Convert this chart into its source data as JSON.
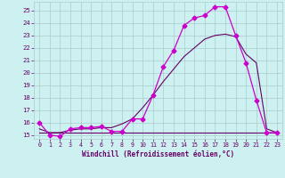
{
  "xlabel": "Windchill (Refroidissement éolien,°C)",
  "background_color": "#cdf0f0",
  "grid_color": "#aacccc",
  "line_color1": "#cc00cc",
  "line_color2": "#660066",
  "xlim": [
    -0.5,
    23.5
  ],
  "ylim": [
    14.7,
    25.7
  ],
  "yticks": [
    15,
    16,
    17,
    18,
    19,
    20,
    21,
    22,
    23,
    24,
    25
  ],
  "xticks": [
    0,
    1,
    2,
    3,
    4,
    5,
    6,
    7,
    8,
    9,
    10,
    11,
    12,
    13,
    14,
    15,
    16,
    17,
    18,
    19,
    20,
    21,
    22,
    23
  ],
  "series1_x": [
    0,
    1,
    2,
    3,
    4,
    5,
    6,
    7,
    8,
    9,
    10,
    11,
    12,
    13,
    14,
    15,
    16,
    17,
    18,
    19,
    20,
    21,
    22,
    23
  ],
  "series1_y": [
    16.0,
    15.0,
    14.9,
    15.5,
    15.6,
    15.6,
    15.7,
    15.3,
    15.3,
    16.3,
    16.3,
    18.2,
    20.5,
    21.8,
    23.8,
    24.4,
    24.6,
    25.3,
    25.3,
    23.0,
    20.8,
    17.8,
    15.2,
    15.2
  ],
  "series2_x": [
    0,
    1,
    2,
    3,
    4,
    5,
    6,
    7,
    8,
    9,
    10,
    11,
    12,
    13,
    14,
    15,
    16,
    17,
    18,
    19,
    20,
    21,
    22,
    23
  ],
  "series2_y": [
    15.2,
    15.2,
    15.2,
    15.2,
    15.2,
    15.2,
    15.2,
    15.2,
    15.2,
    15.2,
    15.2,
    15.2,
    15.2,
    15.2,
    15.2,
    15.2,
    15.2,
    15.2,
    15.2,
    15.2,
    15.2,
    15.2,
    15.2,
    15.2
  ],
  "series3_x": [
    0,
    1,
    2,
    3,
    4,
    5,
    6,
    7,
    8,
    9,
    10,
    11,
    12,
    13,
    14,
    15,
    16,
    17,
    18,
    19,
    20,
    21,
    22,
    23
  ],
  "series3_y": [
    15.5,
    15.2,
    15.2,
    15.4,
    15.5,
    15.5,
    15.6,
    15.6,
    15.9,
    16.3,
    17.2,
    18.2,
    19.3,
    20.3,
    21.3,
    22.0,
    22.7,
    23.0,
    23.1,
    22.9,
    21.5,
    20.8,
    15.5,
    15.2
  ]
}
